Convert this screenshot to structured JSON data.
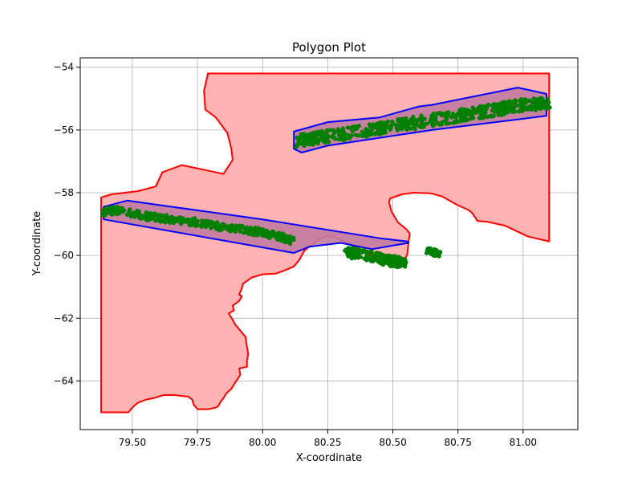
{
  "chart_data": {
    "type": "scatter",
    "title": "Polygon Plot",
    "xlabel": "X-coordinate",
    "ylabel": "Y-coordinate",
    "xlim": [
      79.3,
      81.21
    ],
    "ylim": [
      -65.55,
      -53.7
    ],
    "xticks": [
      79.5,
      79.75,
      80.0,
      80.25,
      80.5,
      80.75,
      81.0
    ],
    "xtick_labels": [
      "79.50",
      "79.75",
      "80.00",
      "80.25",
      "80.50",
      "80.75",
      "81.00"
    ],
    "yticks": [
      -64,
      -62,
      -60,
      -58,
      -56,
      -54
    ],
    "ytick_labels": [
      "−64",
      "−62",
      "−60",
      "−58",
      "−56",
      "−54"
    ],
    "grid": true,
    "colors": {
      "outer_edge": "#ff0000",
      "outer_fill": "#ffb3b3",
      "strip_edge": "#0000ff",
      "strip_fill": "#c27ba0",
      "points": "#008000"
    },
    "polygons": [
      {
        "kind": "outer_region",
        "edge_color": "red",
        "fill_color": "lightcoral",
        "vertices": [
          [
            79.38,
            -65.0
          ],
          [
            79.38,
            -58.15
          ],
          [
            79.42,
            -58.05
          ],
          [
            79.52,
            -57.95
          ],
          [
            79.59,
            -57.8
          ],
          [
            79.615,
            -57.35
          ],
          [
            79.69,
            -57.12
          ],
          [
            79.85,
            -57.4
          ],
          [
            79.885,
            -56.95
          ],
          [
            79.88,
            -56.6
          ],
          [
            79.865,
            -56.1
          ],
          [
            79.82,
            -55.6
          ],
          [
            79.78,
            -55.35
          ],
          [
            79.775,
            -54.75
          ],
          [
            79.79,
            -54.2
          ],
          [
            81.1,
            -54.2
          ],
          [
            81.1,
            -59.55
          ],
          [
            81.02,
            -59.4
          ],
          [
            80.93,
            -59.05
          ],
          [
            80.86,
            -58.92
          ],
          [
            80.825,
            -58.9
          ],
          [
            80.805,
            -58.65
          ],
          [
            80.79,
            -58.55
          ],
          [
            80.745,
            -58.38
          ],
          [
            80.69,
            -58.12
          ],
          [
            80.645,
            -58.02
          ],
          [
            80.58,
            -58.0
          ],
          [
            80.535,
            -58.05
          ],
          [
            80.49,
            -58.18
          ],
          [
            80.485,
            -58.3
          ],
          [
            80.495,
            -58.6
          ],
          [
            80.52,
            -58.95
          ],
          [
            80.55,
            -59.15
          ],
          [
            80.565,
            -59.3
          ],
          [
            80.56,
            -59.6
          ],
          [
            80.555,
            -59.98
          ],
          [
            80.54,
            -60.18
          ],
          [
            80.52,
            -60.22
          ],
          [
            80.49,
            -60.15
          ],
          [
            80.45,
            -60.06
          ],
          [
            80.42,
            -60.02
          ],
          [
            80.375,
            -59.83
          ],
          [
            80.33,
            -59.6
          ],
          [
            80.295,
            -59.5
          ],
          [
            80.28,
            -59.42
          ],
          [
            80.245,
            -59.38
          ],
          [
            80.21,
            -59.52
          ],
          [
            80.195,
            -59.62
          ],
          [
            80.175,
            -59.75
          ],
          [
            80.16,
            -59.85
          ],
          [
            80.14,
            -60.15
          ],
          [
            80.12,
            -60.35
          ],
          [
            80.09,
            -60.46
          ],
          [
            80.05,
            -60.58
          ],
          [
            80.0,
            -60.6
          ],
          [
            79.96,
            -60.7
          ],
          [
            79.95,
            -60.75
          ],
          [
            79.925,
            -60.9
          ],
          [
            79.92,
            -61.05
          ],
          [
            79.91,
            -61.25
          ],
          [
            79.92,
            -61.3
          ],
          [
            79.91,
            -61.45
          ],
          [
            79.885,
            -61.6
          ],
          [
            79.89,
            -61.75
          ],
          [
            79.87,
            -61.85
          ],
          [
            79.885,
            -62.05
          ],
          [
            79.895,
            -62.2
          ],
          [
            79.915,
            -62.4
          ],
          [
            79.935,
            -62.6
          ],
          [
            79.94,
            -62.9
          ],
          [
            79.945,
            -63.15
          ],
          [
            79.94,
            -63.35
          ],
          [
            79.94,
            -63.55
          ],
          [
            79.91,
            -63.6
          ],
          [
            79.915,
            -63.8
          ],
          [
            79.895,
            -64.05
          ],
          [
            79.88,
            -64.25
          ],
          [
            79.86,
            -64.4
          ],
          [
            79.85,
            -64.55
          ],
          [
            79.84,
            -64.65
          ],
          [
            79.83,
            -64.8
          ],
          [
            79.82,
            -64.85
          ],
          [
            79.79,
            -64.9
          ],
          [
            79.75,
            -64.9
          ],
          [
            79.745,
            -64.85
          ],
          [
            79.735,
            -64.75
          ],
          [
            79.73,
            -64.6
          ],
          [
            79.715,
            -64.5
          ],
          [
            79.66,
            -64.45
          ],
          [
            79.62,
            -64.45
          ],
          [
            79.58,
            -64.55
          ],
          [
            79.55,
            -64.6
          ],
          [
            79.52,
            -64.7
          ],
          [
            79.5,
            -64.85
          ],
          [
            79.485,
            -65.0
          ]
        ]
      },
      {
        "kind": "lower_strip",
        "edge_color": "blue",
        "fill_color": "purple",
        "vertices": [
          [
            79.39,
            -58.45
          ],
          [
            79.48,
            -58.25
          ],
          [
            80.0,
            -58.85
          ],
          [
            80.45,
            -59.45
          ],
          [
            80.555,
            -59.55
          ],
          [
            80.56,
            -59.6
          ],
          [
            80.42,
            -59.8
          ],
          [
            80.3,
            -59.6
          ],
          [
            80.18,
            -59.72
          ],
          [
            80.12,
            -59.92
          ],
          [
            79.39,
            -58.85
          ]
        ]
      },
      {
        "kind": "upper_strip",
        "edge_color": "blue",
        "fill_color": "purple",
        "vertices": [
          [
            80.12,
            -56.05
          ],
          [
            80.25,
            -55.75
          ],
          [
            80.45,
            -55.6
          ],
          [
            80.6,
            -55.25
          ],
          [
            80.65,
            -55.2
          ],
          [
            80.98,
            -54.65
          ],
          [
            81.09,
            -54.85
          ],
          [
            81.09,
            -55.55
          ],
          [
            80.65,
            -56.0
          ],
          [
            80.25,
            -56.5
          ],
          [
            80.15,
            -56.72
          ],
          [
            80.12,
            -56.6
          ]
        ]
      }
    ],
    "point_clusters": [
      {
        "region": "lower_strip",
        "color": "green",
        "path": [
          [
            79.39,
            -58.6
          ],
          [
            79.45,
            -58.55
          ],
          [
            79.55,
            -58.75
          ],
          [
            79.65,
            -58.85
          ],
          [
            79.75,
            -58.95
          ],
          [
            79.85,
            -59.1
          ],
          [
            79.95,
            -59.2
          ],
          [
            80.05,
            -59.35
          ],
          [
            80.12,
            -59.55
          ]
        ],
        "band_width": 0.25,
        "count": 420
      },
      {
        "region": "upper_strip",
        "color": "green",
        "path": [
          [
            80.13,
            -56.35
          ],
          [
            80.2,
            -56.25
          ],
          [
            80.3,
            -56.15
          ],
          [
            80.45,
            -55.95
          ],
          [
            80.6,
            -55.75
          ],
          [
            80.75,
            -55.55
          ],
          [
            80.9,
            -55.35
          ],
          [
            81.0,
            -55.2
          ],
          [
            81.1,
            -55.15
          ]
        ],
        "band_width": 0.4,
        "count": 560
      },
      {
        "region": "offshore_patch",
        "color": "green",
        "path": [
          [
            80.32,
            -59.9
          ],
          [
            80.4,
            -60.0
          ],
          [
            80.48,
            -60.15
          ],
          [
            80.55,
            -60.25
          ]
        ],
        "band_width": 0.35,
        "count": 180
      },
      {
        "region": "small_patch",
        "color": "green",
        "path": [
          [
            80.63,
            -59.85
          ],
          [
            80.68,
            -59.95
          ]
        ],
        "band_width": 0.2,
        "count": 50
      }
    ]
  }
}
